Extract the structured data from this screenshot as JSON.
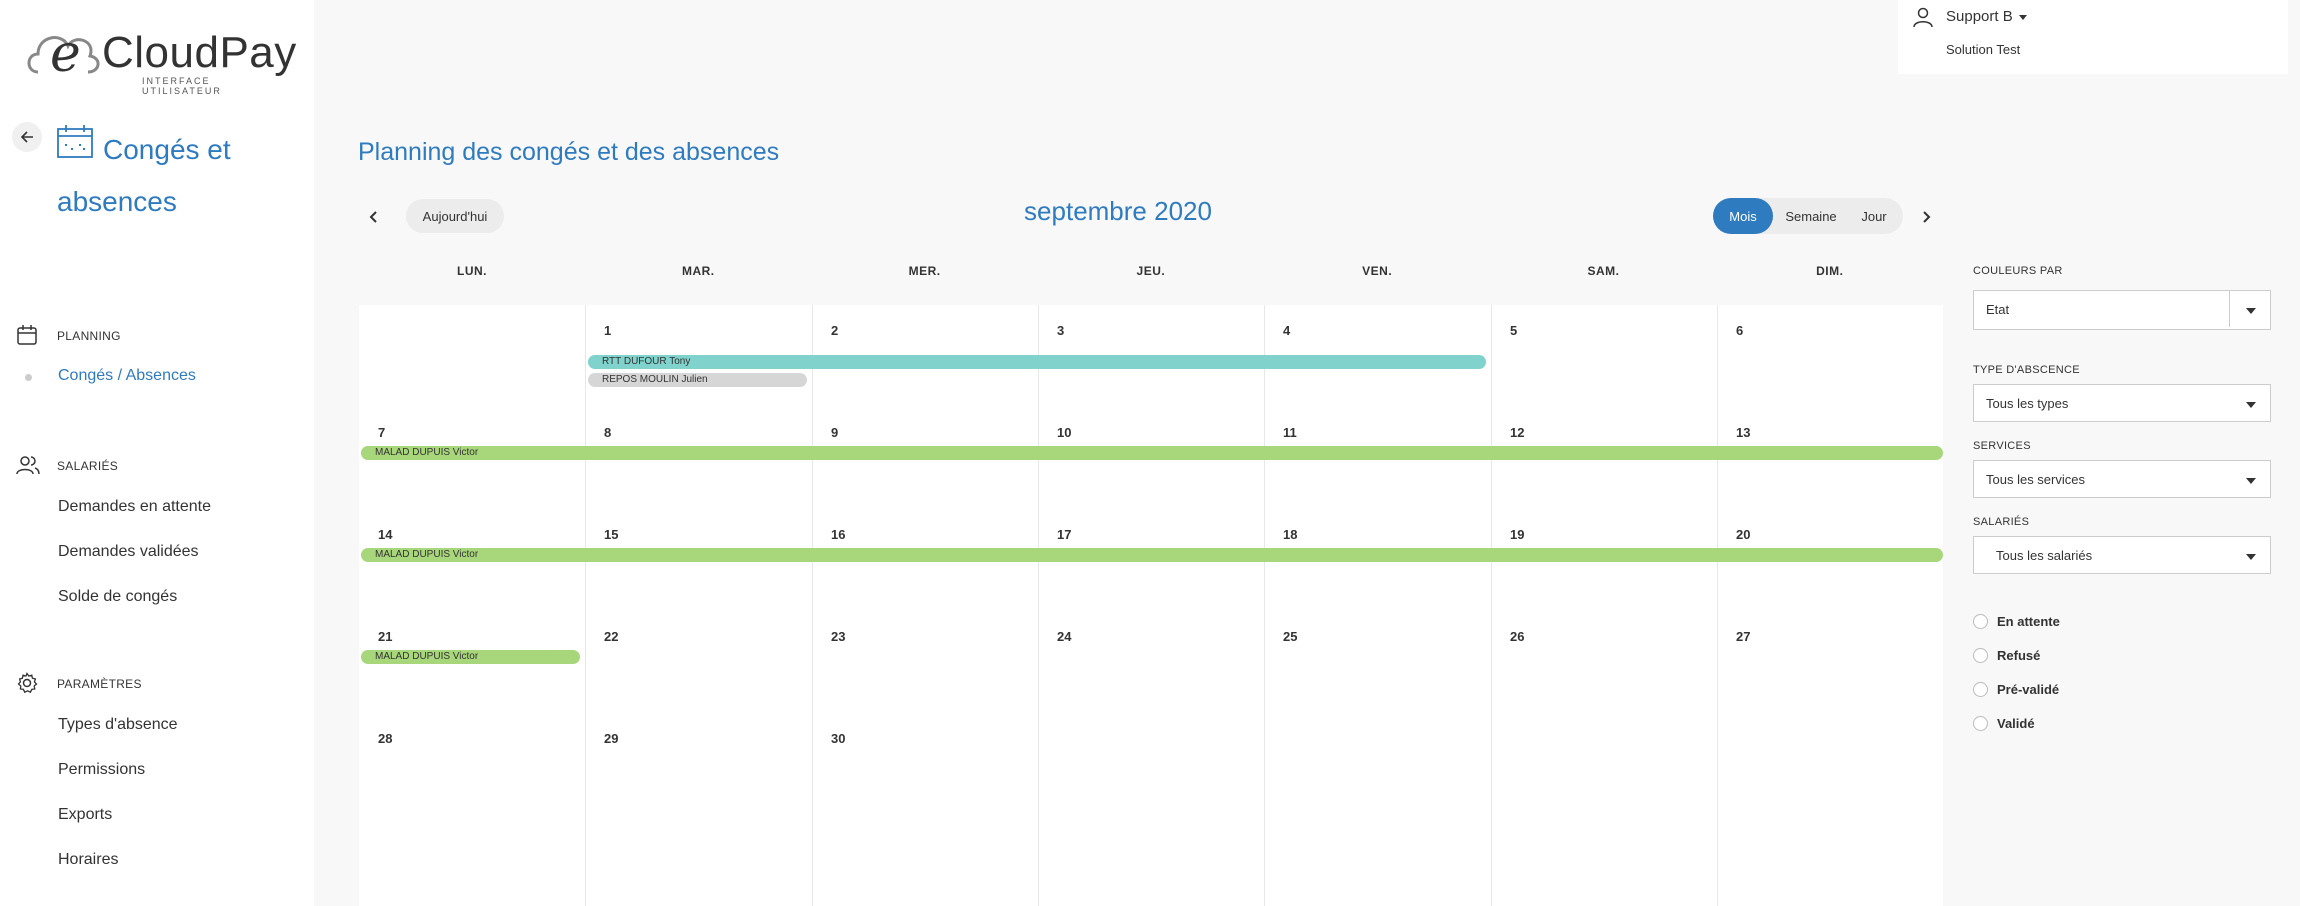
{
  "app": {
    "logo_brand": "CloudPay",
    "logo_e": "e",
    "logo_sub": "INTERFACE UTILISATEUR"
  },
  "module": {
    "title": "Congés et absences"
  },
  "sidebar": {
    "sections": [
      {
        "label": "PLANNING",
        "icon": "calendar-icon",
        "items": [
          {
            "label": "Congés / Absences",
            "active": true
          }
        ]
      },
      {
        "label": "SALARIÉS",
        "icon": "users-icon",
        "items": [
          {
            "label": "Demandes en attente"
          },
          {
            "label": "Demandes validées"
          },
          {
            "label": "Solde de congés"
          }
        ]
      },
      {
        "label": "PARAMÈTRES",
        "icon": "gear-icon",
        "items": [
          {
            "label": "Types d'absence"
          },
          {
            "label": "Permissions"
          },
          {
            "label": "Exports"
          },
          {
            "label": "Horaires"
          }
        ]
      }
    ]
  },
  "user": {
    "name": "Support B",
    "org": "Solution Test"
  },
  "page": {
    "title": "Planning des congés et des absences"
  },
  "calendar": {
    "today_label": "Aujourd'hui",
    "month_title": "septembre 2020",
    "views": [
      {
        "label": "Mois",
        "active": true
      },
      {
        "label": "Semaine"
      },
      {
        "label": "Jour"
      }
    ],
    "weekdays": [
      "LUN.",
      "MAR.",
      "MER.",
      "JEU.",
      "VEN.",
      "SAM.",
      "DIM."
    ],
    "weeks": [
      [
        "",
        "1",
        "2",
        "3",
        "4",
        "5",
        "6"
      ],
      [
        "7",
        "8",
        "9",
        "10",
        "11",
        "12",
        "13"
      ],
      [
        "14",
        "15",
        "16",
        "17",
        "18",
        "19",
        "20"
      ],
      [
        "21",
        "22",
        "23",
        "24",
        "25",
        "26",
        "27"
      ],
      [
        "28",
        "29",
        "30",
        "",
        "",
        "",
        ""
      ]
    ],
    "events": [
      {
        "label": "RTT DUFOUR Tony",
        "week": 0,
        "start_col": 1,
        "end_col": 4,
        "lane": 0,
        "color": "#7fd3cc"
      },
      {
        "label": "REPOS MOULIN Julien",
        "week": 0,
        "start_col": 1,
        "end_col": 1,
        "lane": 1,
        "color": "#d6d6d6"
      },
      {
        "label": "MALAD DUPUIS Victor",
        "week": 1,
        "start_col": 0,
        "end_col": 6,
        "lane": 0,
        "color": "#a8d67a"
      },
      {
        "label": "MALAD DUPUIS Victor",
        "week": 2,
        "start_col": 0,
        "end_col": 6,
        "lane": 0,
        "color": "#a8d67a"
      },
      {
        "label": "MALAD DUPUIS Victor",
        "week": 3,
        "start_col": 0,
        "end_col": 0,
        "lane": 0,
        "color": "#a8d67a"
      }
    ]
  },
  "filters": {
    "color_by": {
      "label": "COULEURS PAR",
      "value": "Etat"
    },
    "absence_type": {
      "label": "TYPE D'ABSCENCE",
      "value": "Tous les types"
    },
    "services": {
      "label": "SERVICES",
      "value": "Tous les services"
    },
    "employees": {
      "label": "SALARIÉS",
      "value": "Tous les salariés"
    },
    "states": [
      "En attente",
      "Refusé",
      "Pré-validé",
      "Validé"
    ]
  },
  "colors": {
    "accent": "#2f7bbf",
    "rtt": "#7fd3cc",
    "repos": "#d6d6d6",
    "malad": "#a8d67a"
  }
}
